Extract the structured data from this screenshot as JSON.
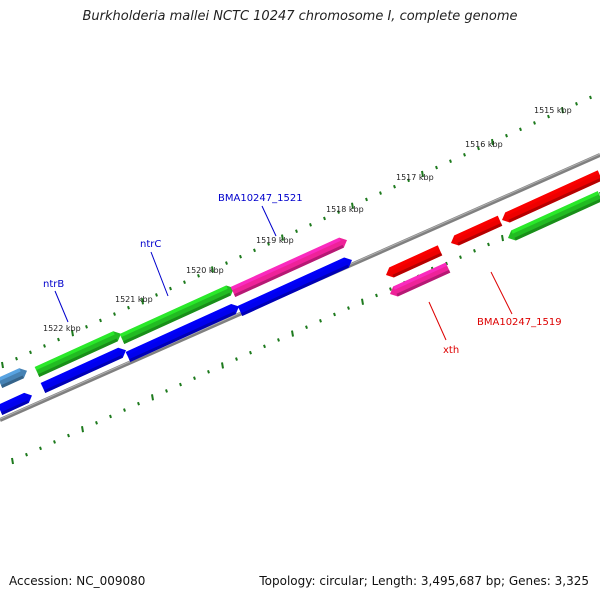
{
  "title": "Burkholderia mallei NCTC 10247 chromosome I, complete genome",
  "footer": {
    "accession": "Accession: NC_009080",
    "stats": "Topology: circular; Length: 3,495,687 bp; Genes: 3,325"
  },
  "scale": {
    "unit": "kbp",
    "labels": [
      "1515 kbp",
      "1516 kbp",
      "1517 kbp",
      "1518 kbp",
      "1519 kbp",
      "1520 kbp",
      "1521 kbp",
      "1522 kbp"
    ]
  },
  "gene_labels": [
    {
      "text": "BMA10247_1521",
      "color": "#0000cc"
    },
    {
      "text": "ntrC",
      "color": "#0000cc"
    },
    {
      "text": "ntrB",
      "color": "#0000cc"
    },
    {
      "text": "BMA10247_1519",
      "color": "#dd0000"
    },
    {
      "text": "xth",
      "color": "#dd0000"
    }
  ],
  "colors": {
    "backbone": "#808080",
    "tick": "#1d7a1d",
    "cds_forward": "#22bb22",
    "cds_reverse": "#0000ee",
    "highlight_forward": "#ee2299",
    "highlight_reverse": "#ee0000",
    "other_feature": "#4682b4"
  }
}
